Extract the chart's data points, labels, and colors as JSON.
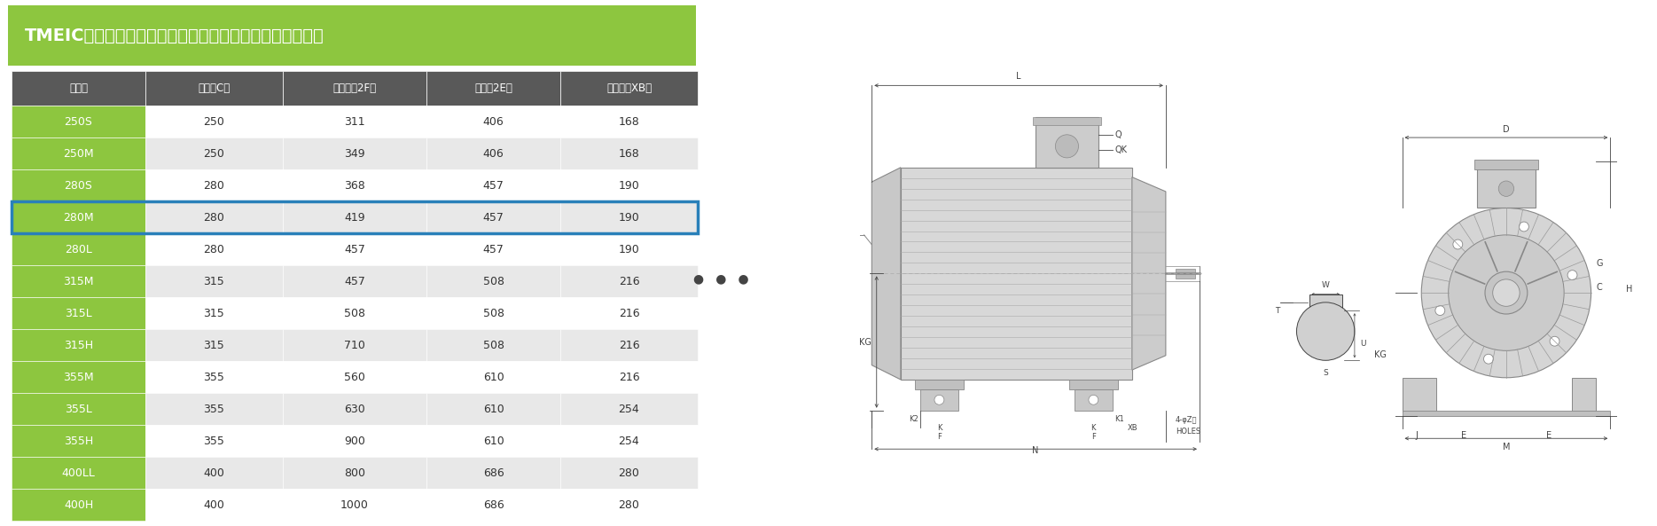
{
  "title": "TMEICモータの枠番号一覧（全閉外扇形フィンフレーム）",
  "title_bg_color": "#8dc63f",
  "title_text_color": "#ffffff",
  "header_bg_color": "#595959",
  "header_text_color": "#ffffff",
  "col_headers": [
    "枠番号",
    "軸高（C）",
    "脚穴長（2F）",
    "脚幅（2E）",
    "段付長（XB）"
  ],
  "rows": [
    {
      "label": "250S",
      "C": "250",
      "2F": "311",
      "2E": "406",
      "XB": "168",
      "selected": false
    },
    {
      "label": "250M",
      "C": "250",
      "2F": "349",
      "2E": "406",
      "XB": "168",
      "selected": false
    },
    {
      "label": "280S",
      "C": "280",
      "2F": "368",
      "2E": "457",
      "XB": "190",
      "selected": false
    },
    {
      "label": "280M",
      "C": "280",
      "2F": "419",
      "2E": "457",
      "XB": "190",
      "selected": true
    },
    {
      "label": "280L",
      "C": "280",
      "2F": "457",
      "2E": "457",
      "XB": "190",
      "selected": false
    },
    {
      "label": "315M",
      "C": "315",
      "2F": "457",
      "2E": "508",
      "XB": "216",
      "selected": false
    },
    {
      "label": "315L",
      "C": "315",
      "2F": "508",
      "2E": "508",
      "XB": "216",
      "selected": false
    },
    {
      "label": "315H",
      "C": "315",
      "2F": "710",
      "2E": "508",
      "XB": "216",
      "selected": false
    },
    {
      "label": "355M",
      "C": "355",
      "2F": "560",
      "2E": "610",
      "XB": "216",
      "selected": false
    },
    {
      "label": "355L",
      "C": "355",
      "2F": "630",
      "2E": "610",
      "XB": "254",
      "selected": false
    },
    {
      "label": "355H",
      "C": "355",
      "2F": "900",
      "2E": "610",
      "XB": "254",
      "selected": false
    },
    {
      "label": "400LL",
      "C": "400",
      "2F": "800",
      "2E": "686",
      "XB": "280",
      "selected": false
    },
    {
      "label": "400H",
      "C": "400",
      "2F": "1000",
      "2E": "686",
      "XB": "280",
      "selected": false
    }
  ],
  "label_col_bg": "#8dc63f",
  "label_col_text": "#ffffff",
  "row_bg_odd": "#ffffff",
  "row_bg_even": "#e8e8e8",
  "selected_border_color": "#2980b9",
  "dots_color": "#444444",
  "bg_color": "#ffffff",
  "dim_color": "#444444",
  "draw_color": "#888888"
}
